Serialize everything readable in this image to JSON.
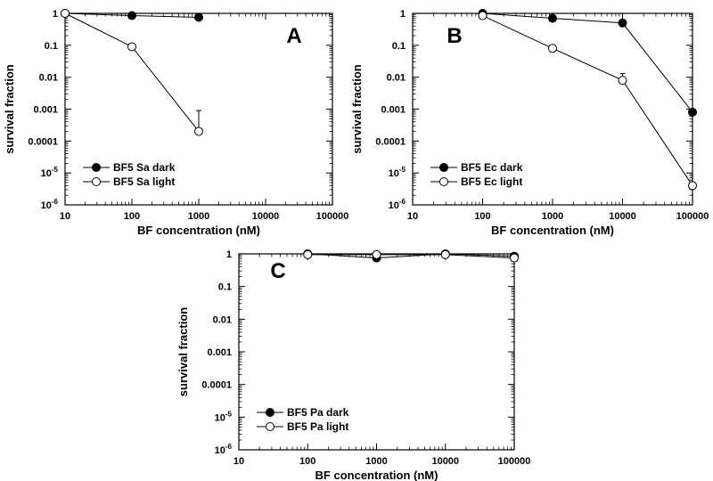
{
  "chart_data": [
    {
      "panel": "A",
      "type": "line",
      "xscale": "log",
      "yscale": "log",
      "xlim": [
        10,
        100000
      ],
      "ylim": [
        1e-06,
        1
      ],
      "xlabel": "BF concentration (nM)",
      "ylabel": "survival fraction",
      "x_ticks": [
        "10",
        "100",
        "1000",
        "10000",
        "100000"
      ],
      "y_ticks": [
        "1",
        "0.1",
        "0.01",
        "0.001",
        "0.0001",
        "10^-5",
        "10^-6"
      ],
      "legend_position": "bottom-left",
      "series": [
        {
          "name": "BF5 Sa dark",
          "marker": "filled-circle",
          "x": [
            10,
            100,
            1000
          ],
          "y": [
            1,
            0.85,
            0.75
          ]
        },
        {
          "name": "BF5 Sa light",
          "marker": "open-circle",
          "x": [
            10,
            100,
            1000
          ],
          "y": [
            1,
            0.09,
            0.0002
          ],
          "error_upper": [
            null,
            null,
            0.0009
          ]
        }
      ]
    },
    {
      "panel": "B",
      "type": "line",
      "xscale": "log",
      "yscale": "log",
      "xlim": [
        10,
        100000
      ],
      "ylim": [
        1e-06,
        1
      ],
      "xlabel": "BF concentration (nM)",
      "ylabel": "survival fraction",
      "x_ticks": [
        "10",
        "100",
        "1000",
        "10000",
        "100000"
      ],
      "y_ticks": [
        "1",
        "0.1",
        "0.01",
        "0.001",
        "0.0001",
        "10^-5",
        "10^-6"
      ],
      "legend_position": "bottom-left",
      "series": [
        {
          "name": "BF5 Ec dark",
          "marker": "filled-circle",
          "x": [
            100,
            1000,
            10000,
            100000
          ],
          "y": [
            1,
            0.7,
            0.5,
            0.0008
          ]
        },
        {
          "name": "BF5 Ec light",
          "marker": "open-circle",
          "x": [
            100,
            1000,
            10000,
            100000
          ],
          "y": [
            0.85,
            0.08,
            0.008,
            4e-06
          ],
          "error_upper": [
            null,
            null,
            0.013,
            null
          ]
        }
      ]
    },
    {
      "panel": "C",
      "type": "line",
      "xscale": "log",
      "yscale": "log",
      "xlim": [
        10,
        100000
      ],
      "ylim": [
        1e-06,
        1
      ],
      "xlabel": "BF concentration (nM)",
      "ylabel": "survival fraction",
      "x_ticks": [
        "10",
        "100",
        "1000",
        "10000",
        "100000"
      ],
      "y_ticks": [
        "1",
        "0.1",
        "0.01",
        "0.001",
        "0.0001",
        "10^-5",
        "10^-6"
      ],
      "legend_position": "bottom-left",
      "series": [
        {
          "name": "BF5 Pa dark",
          "marker": "filled-circle",
          "x": [
            100,
            1000,
            10000,
            100000
          ],
          "y": [
            1,
            0.75,
            1,
            0.85
          ]
        },
        {
          "name": "BF5 Pa light",
          "marker": "open-circle",
          "x": [
            100,
            1000,
            10000,
            100000
          ],
          "y": [
            0.95,
            0.95,
            0.95,
            0.75
          ]
        }
      ]
    }
  ]
}
